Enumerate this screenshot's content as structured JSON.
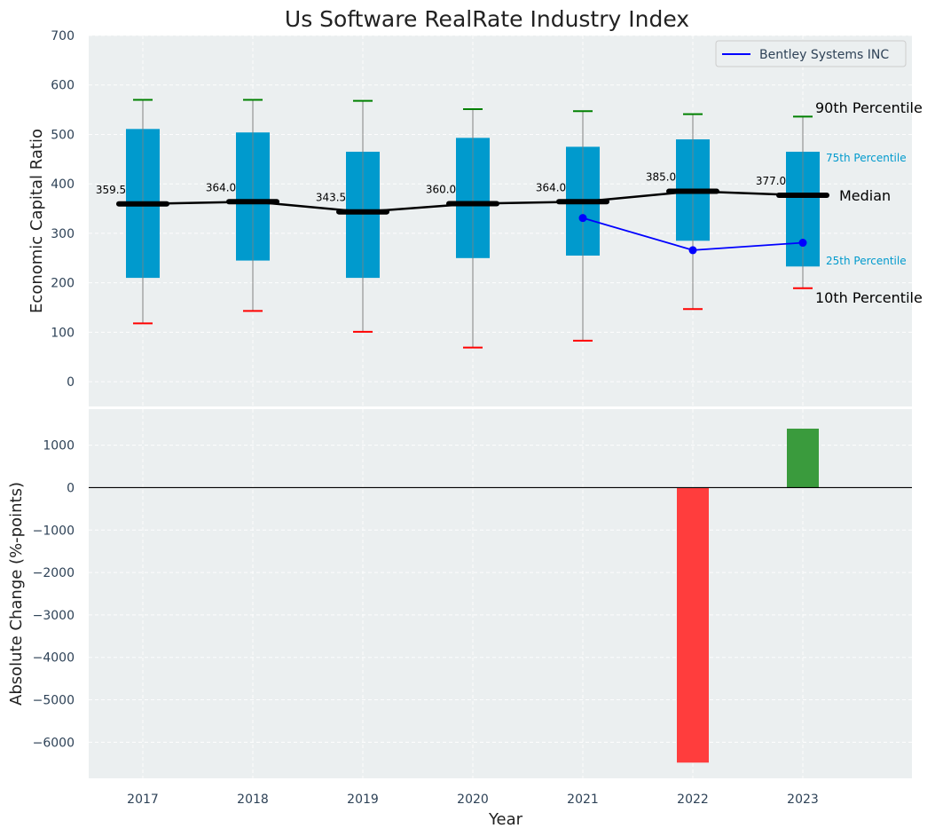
{
  "chart_data": [
    {
      "type": "box",
      "title": "Us Software RealRate Industry Index",
      "ylabel": "Economic Capital Ratio",
      "ylim": [
        -50,
        700
      ],
      "yticks": [
        0,
        100,
        200,
        300,
        400,
        500,
        600,
        700
      ],
      "grid": true,
      "legend_position": "top-right",
      "categories": [
        "2017",
        "2018",
        "2019",
        "2020",
        "2021",
        "2022",
        "2023"
      ],
      "p10": [
        118,
        143,
        101,
        69,
        83,
        147,
        189
      ],
      "p25": [
        210,
        245,
        210,
        250,
        255,
        285,
        233
      ],
      "median": [
        359.5,
        364.0,
        343.5,
        360.0,
        364.0,
        385.0,
        377.0
      ],
      "median_labels": [
        "359.5",
        "364.0",
        "343.5",
        "360.0",
        "364.0",
        "385.0",
        "377.0"
      ],
      "p75": [
        511,
        504,
        465,
        493,
        475,
        490,
        465
      ],
      "p90": [
        570,
        570,
        568,
        551,
        547,
        541,
        536
      ],
      "series": [
        {
          "name": "Bentley Systems INC",
          "x": [
            "2021",
            "2022",
            "2023"
          ],
          "values": [
            331,
            266,
            281
          ]
        }
      ],
      "annotations": {
        "p90": "90th Percentile",
        "p75": "75th Percentile",
        "median": "Median",
        "p25": "25th Percentile",
        "p10": "10th Percentile"
      },
      "colors": {
        "box": "#009acd",
        "median_line": "#000000",
        "company_line": "#0000ff",
        "p90_cap": "#008000",
        "p10_cap": "#ff0000",
        "whisker": "#808080",
        "background": "#ebeff0"
      }
    },
    {
      "type": "bar",
      "xlabel": "Year",
      "ylabel": "Absolute Change (%-points)",
      "ylim": [
        -6850,
        1850
      ],
      "yticks": [
        -6000,
        -5000,
        -4000,
        -3000,
        -2000,
        -1000,
        0,
        1000
      ],
      "ytick_labels": [
        "−6000",
        "−5000",
        "−4000",
        "−3000",
        "−2000",
        "−1000",
        "0",
        "1000"
      ],
      "grid": true,
      "categories": [
        "2017",
        "2018",
        "2019",
        "2020",
        "2021",
        "2022",
        "2023"
      ],
      "values": [
        null,
        null,
        null,
        null,
        null,
        -6480,
        1390
      ],
      "colors": {
        "positive": "#3a9b3d",
        "negative": "#ff3d3d",
        "zero_line": "#000000"
      }
    }
  ]
}
